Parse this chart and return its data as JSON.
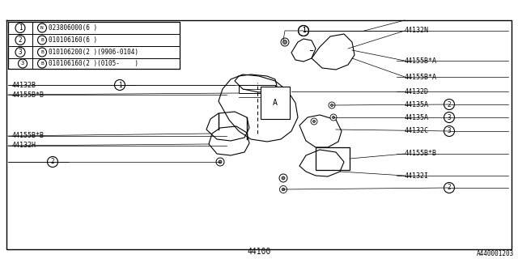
{
  "bg_color": "#ffffff",
  "border_color": "#000000",
  "line_color": "#000000",
  "text_color": "#000000",
  "fig_width": 6.4,
  "fig_height": 3.2,
  "bottom_label": "44100",
  "bottom_right_label": "A440001203",
  "legend_rows": [
    {
      "circle": "1",
      "icon": "N",
      "text": "023806000(6 )"
    },
    {
      "circle": "2",
      "icon": "B",
      "text": "010106160(6 )"
    },
    {
      "circle": "3",
      "icon": "B",
      "text": "010106200(2 )(9906-0104)"
    },
    {
      "circle": "3",
      "icon": "B",
      "text": "010106160(2 )(0105-    )"
    }
  ]
}
